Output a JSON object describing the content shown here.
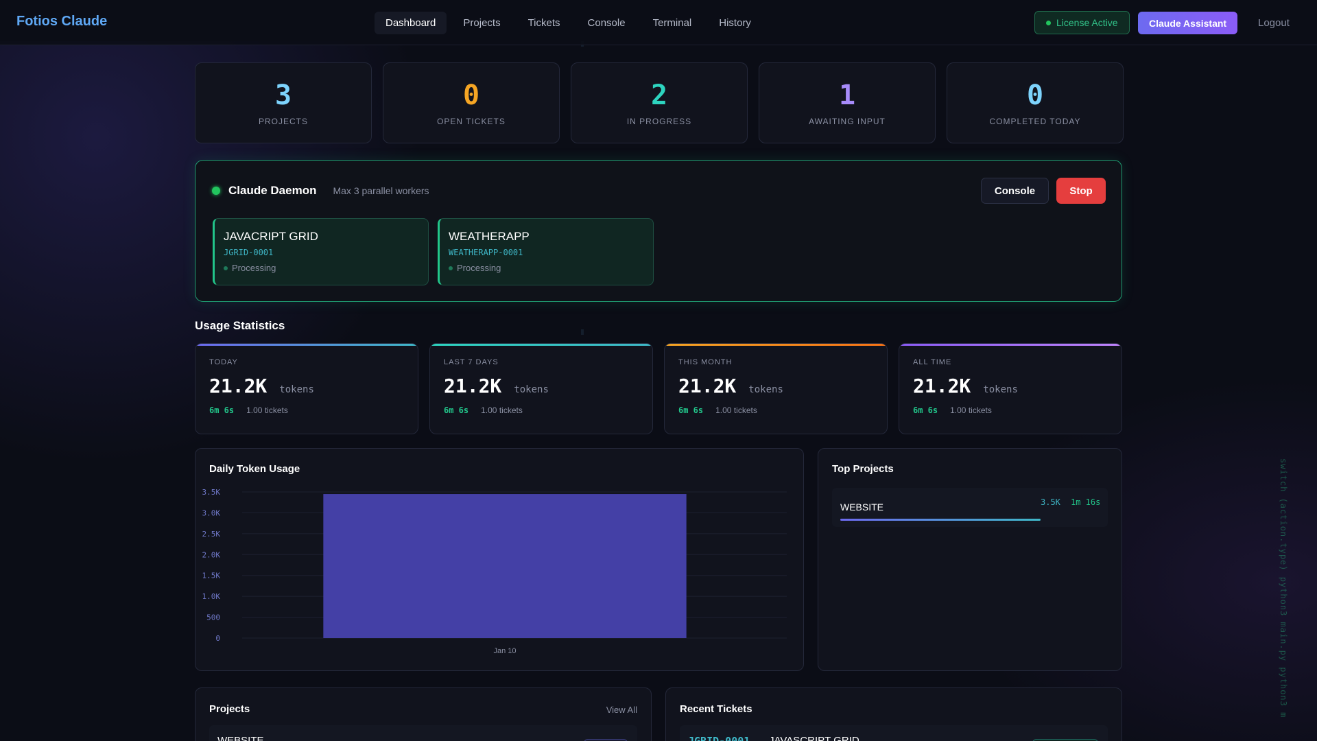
{
  "nav": {
    "brand": "Fotios Claude",
    "links": [
      "Dashboard",
      "Projects",
      "Tickets",
      "Console",
      "Terminal",
      "History"
    ],
    "license": "License Active",
    "assistant": "Claude Assistant",
    "logout": "Logout"
  },
  "stats": [
    {
      "value": "3",
      "label": "PROJECTS",
      "color": "#7dd3fc"
    },
    {
      "value": "0",
      "label": "OPEN TICKETS",
      "color": "#f5a524"
    },
    {
      "value": "2",
      "label": "IN PROGRESS",
      "color": "#2dd4bf"
    },
    {
      "value": "1",
      "label": "AWAITING INPUT",
      "color": "#a78bfa"
    },
    {
      "value": "0",
      "label": "COMPLETED TODAY",
      "color": "#7dd3fc"
    }
  ],
  "daemon": {
    "title": "Claude Daemon",
    "subtitle": "Max 3 parallel workers",
    "console_label": "Console",
    "stop_label": "Stop",
    "workers": [
      {
        "name": "JAVACRIPT GRID",
        "id": "JGRID-0001",
        "state": "Processing"
      },
      {
        "name": "WEATHERAPP",
        "id": "WEATHERAPP-0001",
        "state": "Processing"
      }
    ]
  },
  "usage": {
    "title": "Usage Statistics",
    "cards": [
      {
        "period": "TODAY",
        "tokens": "21.2K",
        "unit": "tokens",
        "duration": "6m 6s",
        "tickets": "1.00 tickets",
        "accent": "#6d6af0"
      },
      {
        "period": "LAST 7 DAYS",
        "tokens": "21.2K",
        "unit": "tokens",
        "duration": "6m 6s",
        "tickets": "1.00 tickets",
        "accent": "#2dd4bf"
      },
      {
        "period": "THIS MONTH",
        "tokens": "21.2K",
        "unit": "tokens",
        "duration": "6m 6s",
        "tickets": "1.00 tickets",
        "accent": "#f5a524"
      },
      {
        "period": "ALL TIME",
        "tokens": "21.2K",
        "unit": "tokens",
        "duration": "6m 6s",
        "tickets": "1.00 tickets",
        "accent": "#a855f7"
      }
    ]
  },
  "chart": {
    "title": "Daily Token Usage"
  },
  "chart_data": {
    "type": "bar",
    "categories": [
      "Jan 10"
    ],
    "values": [
      3450
    ],
    "ylim": [
      0,
      3500
    ],
    "yticks": [
      0,
      500,
      1000,
      1500,
      2000,
      2500,
      3000,
      3500
    ],
    "ytick_labels": [
      "0",
      "500",
      "1.0K",
      "1.5K",
      "2.0K",
      "2.5K",
      "3.0K",
      "3.5K"
    ],
    "grid": true,
    "bar_color": "#4440a6"
  },
  "top_projects": {
    "title": "Top Projects",
    "items": [
      {
        "name": "WEBSITE",
        "tokens": "3.5K",
        "duration": "1m 16s"
      }
    ]
  },
  "projects": {
    "title": "Projects",
    "view_all": "View All",
    "items": [
      {
        "name": "WEBSITE"
      }
    ]
  },
  "recent_tickets": {
    "title": "Recent Tickets",
    "items": [
      {
        "id": "JGRID-0001",
        "name": "JAVASCRIPT GRID"
      }
    ]
  },
  "side_code": "switch (action.type) python3 main.py python3 m"
}
